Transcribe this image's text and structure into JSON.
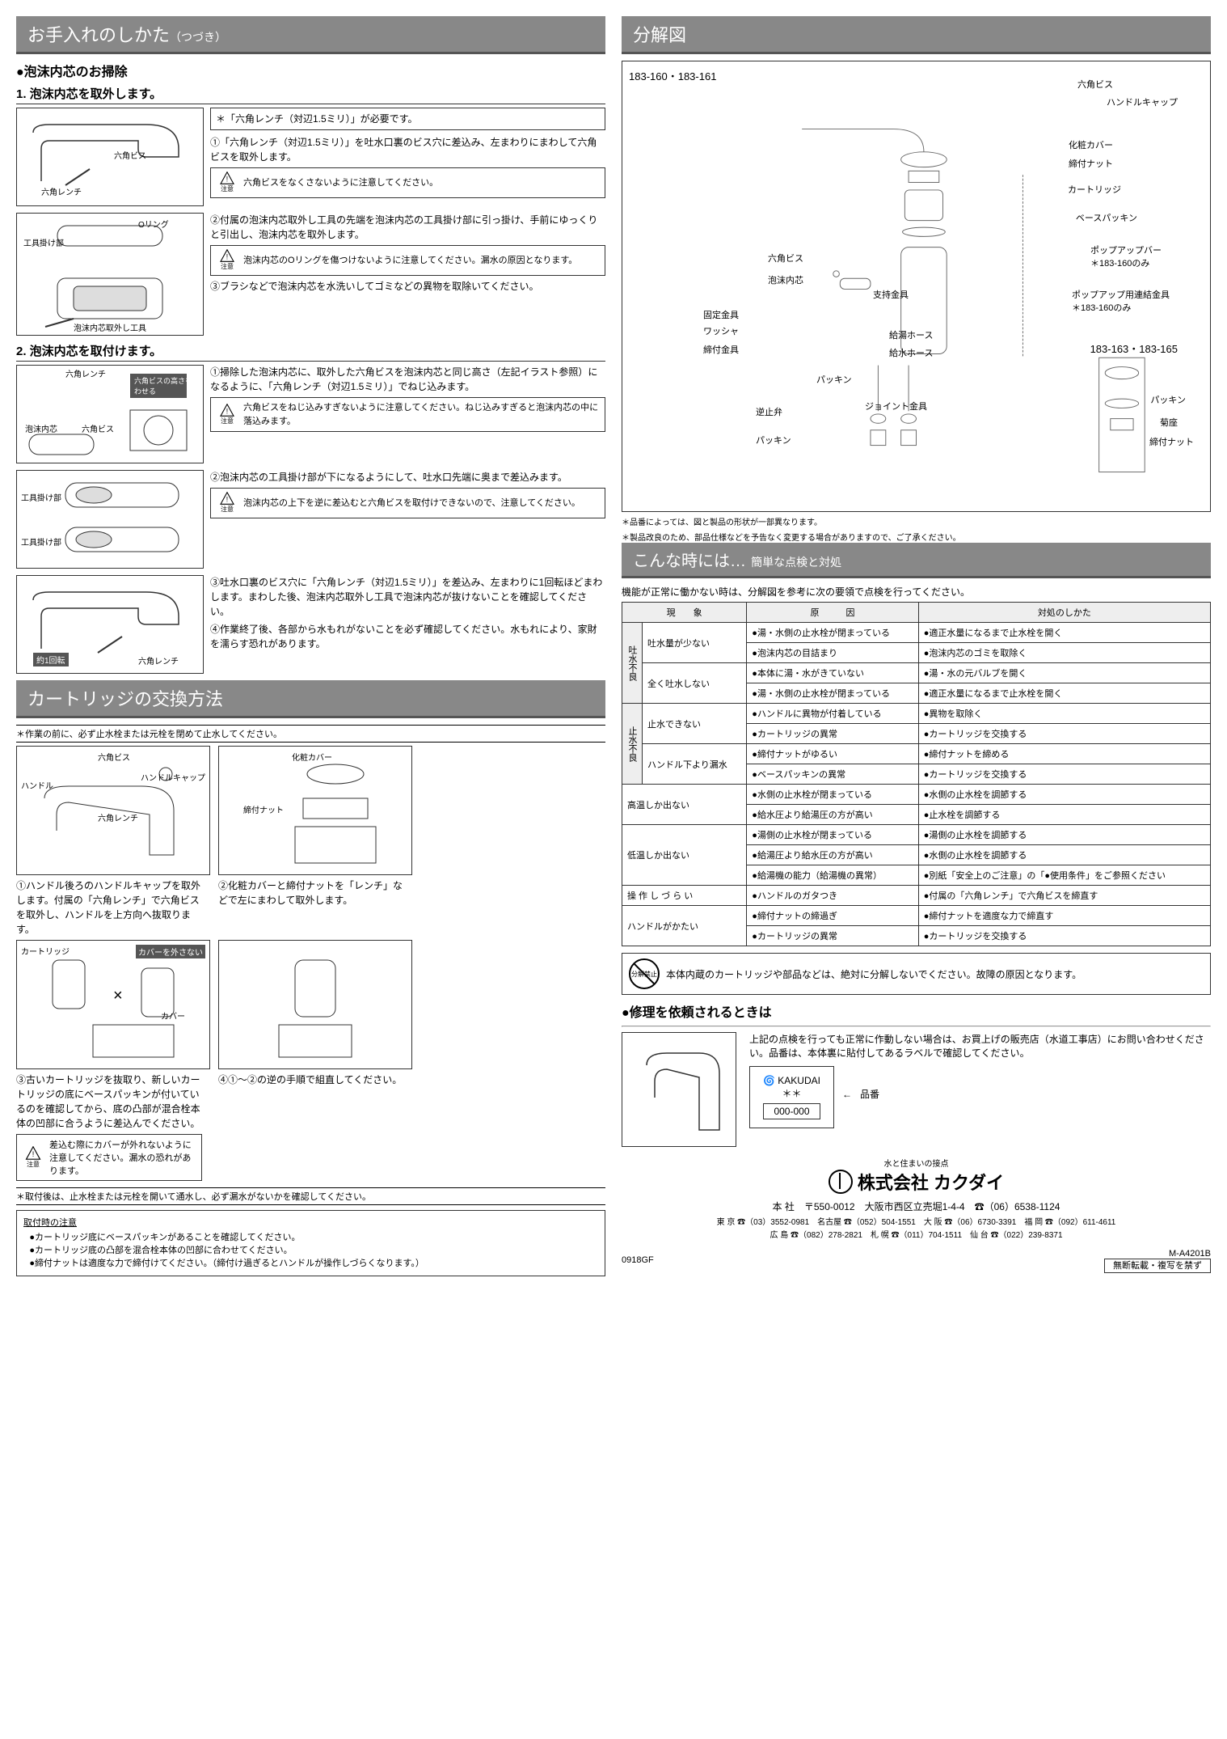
{
  "left": {
    "title": "お手入れのしかた",
    "title_sub": "（つづき）",
    "section1": {
      "heading": "泡沫内芯のお掃除",
      "step1": {
        "title": "1. 泡沫内芯を取外します。",
        "diag_labels": {
          "screw": "六角ビス",
          "wrench": "六角レンチ"
        },
        "need": "＊「六角レンチ（対辺1.5ミリ）」が必要です。",
        "text1": "①「六角レンチ（対辺1.5ミリ）」を吐水口裏のビス穴に差込み、左まわりにまわして六角ビスを取外します。",
        "caution1": "六角ビスをなくさないように注意してください。",
        "diag2_labels": {
          "hook": "工具掛け部",
          "oring": "Oリング",
          "tool": "泡沫内芯取外し工具"
        },
        "text2": "②付属の泡沫内芯取外し工具の先端を泡沫内芯の工具掛け部に引っ掛け、手前にゆっくりと引出し、泡沫内芯を取外します。",
        "caution2": "泡沫内芯のOリングを傷つけないように注意してください。漏水の原因となります。",
        "text3": "③ブラシなどで泡沫内芯を水洗いしてゴミなどの異物を取除いてください。"
      },
      "step2": {
        "title": "2. 泡沫内芯を取付けます。",
        "diag_labels": {
          "wrench": "六角レンチ",
          "height": "六角ビスの高さを合わせる",
          "aerator": "泡沫内芯",
          "screw": "六角ビス"
        },
        "text1": "①掃除した泡沫内芯に、取外した六角ビスを泡沫内芯と同じ高さ（左記イラスト参照）になるように、「六角レンチ（対辺1.5ミリ）」でねじ込みます。",
        "caution1": "六角ビスをねじ込みすぎないように注意してください。ねじ込みすぎると泡沫内芯の中に落込みます。",
        "diag2_labels": {
          "hook": "工具掛け部"
        },
        "text2": "②泡沫内芯の工具掛け部が下になるようにして、吐水口先端に奥まで差込みます。",
        "caution2": "泡沫内芯の上下を逆に差込むと六角ビスを取付けできないので、注意してください。",
        "diag3_labels": {
          "turn": "約1回転",
          "wrench": "六角レンチ"
        },
        "text3": "③吐水口裏のビス穴に「六角レンチ（対辺1.5ミリ）」を差込み、左まわりに1回転ほどまわします。まわした後、泡沫内芯取外し工具で泡沫内芯が抜けないことを確認してください。",
        "text4": "④作業終了後、各部から水もれがないことを必ず確認してください。水もれにより、家財を濡らす恐れがあります。"
      }
    },
    "cartridge": {
      "title": "カートリッジの交換方法",
      "pre": "＊作業の前に、必ず止水栓または元栓を閉めて止水してください。",
      "box1_labels": {
        "handle": "ハンドル",
        "screw": "六角ビス",
        "cap": "ハンドルキャップ",
        "wrench": "六角レンチ"
      },
      "inst1": "①ハンドル後ろのハンドルキャップを取外します。付属の「六角レンチ」で六角ビスを取外し、ハンドルを上方向へ抜取ります。",
      "box2_labels": {
        "cover": "化粧カバー",
        "nut": "締付ナット"
      },
      "inst2": "②化粧カバーと締付ナットを「レンチ」などで左にまわして取外します。",
      "box3_labels": {
        "cart": "カートリッジ",
        "nocover": "カバーを外さない",
        "cover": "カバー"
      },
      "inst3": "③古いカートリッジを抜取り、新しいカートリッジの底にベースパッキンが付いているのを確認してから、底の凸部が混合栓本体の凹部に合うように差込んでください。",
      "caution3": "差込む際にカバーが外れないように注意してください。漏水の恐れがあります。",
      "inst4": "④①〜②の逆の手順で組直してください。",
      "after": "＊取付後は、止水栓または元栓を開いて通水し、必ず漏水がないかを確認してください。",
      "mount_note": {
        "title": "取付時の注意",
        "items": [
          "カートリッジ底にベースパッキンがあることを確認してください。",
          "カートリッジ底の凸部を混合栓本体の凹部に合わせてください。",
          "締付ナットは適度な力で締付けてください。（締付け過ぎるとハンドルが操作しづらくなります。）"
        ]
      }
    }
  },
  "right": {
    "exploded": {
      "title": "分解図",
      "model_a": "183-160・183-161",
      "model_b": "183-163・183-165",
      "labels": {
        "hex_screw": "六角ビス",
        "handle_cap": "ハンドルキャップ",
        "cover": "化粧カバー",
        "nut": "締付ナット",
        "cartridge": "カートリッジ",
        "base_packing": "ベースパッキン",
        "popup_bar": "ポップアップバー",
        "popup_only": "＊183-160のみ",
        "popup_joint": "ポップアップ用連結金具",
        "popup_joint_only": "＊183-160のみ",
        "hex_screw2": "六角ビス",
        "aerator": "泡沫内芯",
        "support": "支持金具",
        "fix": "固定金具",
        "washer": "ワッシャ",
        "nut_fitting": "締付金具",
        "hot_hose": "給湯ホース",
        "cold_hose": "給水ホース",
        "packing": "パッキン",
        "check": "逆止弁",
        "joint": "ジョイント金具",
        "packing2": "パッキン",
        "packing3": "パッキン",
        "kikuza": "菊座",
        "nut2": "締付ナット"
      },
      "notes": [
        "＊品番によっては、図と製品の形状が一部異なります。",
        "＊製品改良のため、部品仕様などを予告なく変更する場合がありますので、ご了承ください。"
      ]
    },
    "trouble": {
      "title": "こんな時には…",
      "sub": "簡単な点検と対処",
      "lead": "機能が正常に働かない時は、分解図を参考に次の要領で点検を行ってください。",
      "headers": {
        "sym": "現　　象",
        "cause": "原　　　因",
        "fix": "対処のしかた"
      },
      "cat1": "吐水不良",
      "cat2": "止水不良",
      "rows": [
        {
          "cat": "cat1",
          "sym": "吐水量が少ない",
          "cause": "湯・水側の止水栓が閉まっている",
          "fix": "適正水量になるまで止水栓を開く"
        },
        {
          "cat": "cat1",
          "sym": "",
          "cause": "泡沫内芯の目詰まり",
          "fix": "泡沫内芯のゴミを取除く"
        },
        {
          "cat": "cat1",
          "sym": "全く吐水しない",
          "cause": "本体に湯・水がきていない",
          "fix": "湯・水の元バルブを開く"
        },
        {
          "cat": "cat1",
          "sym": "",
          "cause": "湯・水側の止水栓が閉まっている",
          "fix": "適正水量になるまで止水栓を開く"
        },
        {
          "cat": "cat2",
          "sym": "止水できない",
          "cause": "ハンドルに異物が付着している",
          "fix": "異物を取除く"
        },
        {
          "cat": "cat2",
          "sym": "",
          "cause": "カートリッジの異常",
          "fix": "カートリッジを交換する"
        },
        {
          "cat": "cat2",
          "sym": "ハンドル下より漏水",
          "cause": "締付ナットがゆるい",
          "fix": "締付ナットを締める"
        },
        {
          "cat": "cat2",
          "sym": "",
          "cause": "ベースパッキンの異常",
          "fix": "カートリッジを交換する"
        },
        {
          "cat": "",
          "sym": "高温しか出ない",
          "cause": "水側の止水栓が閉まっている",
          "fix": "水側の止水栓を調節する"
        },
        {
          "cat": "",
          "sym": "",
          "cause": "給水圧より給湯圧の方が高い",
          "fix": "止水栓を調節する"
        },
        {
          "cat": "",
          "sym": "低温しか出ない",
          "cause": "湯側の止水栓が閉まっている",
          "fix": "湯側の止水栓を調節する"
        },
        {
          "cat": "",
          "sym": "",
          "cause": "給湯圧より給水圧の方が高い",
          "fix": "水側の止水栓を調節する"
        },
        {
          "cat": "",
          "sym": "",
          "cause": "給湯機の能力（給湯機の異常）",
          "fix": "別紙「安全上のご注意」の「●使用条件」をご参照ください"
        },
        {
          "cat": "",
          "sym": "操 作 し づ ら い",
          "cause": "ハンドルのガタつき",
          "fix": "付属の「六角レンチ」で六角ビスを締直す"
        },
        {
          "cat": "",
          "sym": "ハンドルがかたい",
          "cause": "締付ナットの締過ぎ",
          "fix": "締付ナットを適度な力で締直す"
        },
        {
          "cat": "",
          "sym": "",
          "cause": "カートリッジの異常",
          "fix": "カートリッジを交換する"
        }
      ],
      "prohibit_label": "分解禁止",
      "prohibit": "本体内蔵のカートリッジや部品などは、絶対に分解しないでください。故障の原因となります。"
    },
    "repair": {
      "heading": "修理を依頼されるときは",
      "text": "上記の点検を行っても正常に作動しない場合は、お買上げの販売店（水道工事店）にお問い合わせください。品番は、本体裏に貼付してあるラベルで確認してください。",
      "brand": "KAKUDAI",
      "stars": "＊＊",
      "pn": "000-000",
      "pn_label": "品番"
    },
    "company": {
      "tagline": "水と住まいの接点",
      "name": "株式会社 カクダイ",
      "hq": "本 社　〒550-0012　大阪市西区立売堀1-4-4　☎（06）6538-1124",
      "branches": "東 京 ☎（03）3552-0981　名古屋 ☎（052）504-1551　大 阪 ☎（06）6730-3391　福 岡 ☎（092）611-4611\n広 島 ☎（082）278-2821　札 幌 ☎（011）704-1511　仙 台 ☎（022）239-8371"
    },
    "footer": {
      "code": "0918GF",
      "doc": "M-A4201B",
      "nocopy": "無断転載・複写を禁ず"
    }
  },
  "caution_label": "注意"
}
